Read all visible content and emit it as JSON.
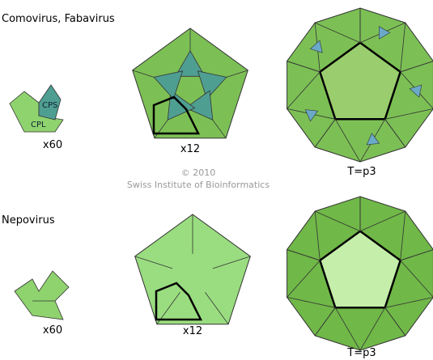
{
  "rows": [
    {
      "title": "Comovirus, Fabavirus",
      "cps": "CPS",
      "cpl": "CPL",
      "unit_label": "x60",
      "pentamer_label": "x12",
      "capsid_label": "T=p3"
    },
    {
      "title": "Nepovirus",
      "unit_label": "x60",
      "pentamer_label": "x12",
      "capsid_label": "T=p3"
    }
  ],
  "credit": {
    "year": "© 2010",
    "organization": "Swiss Institute of Bioinformatics"
  }
}
